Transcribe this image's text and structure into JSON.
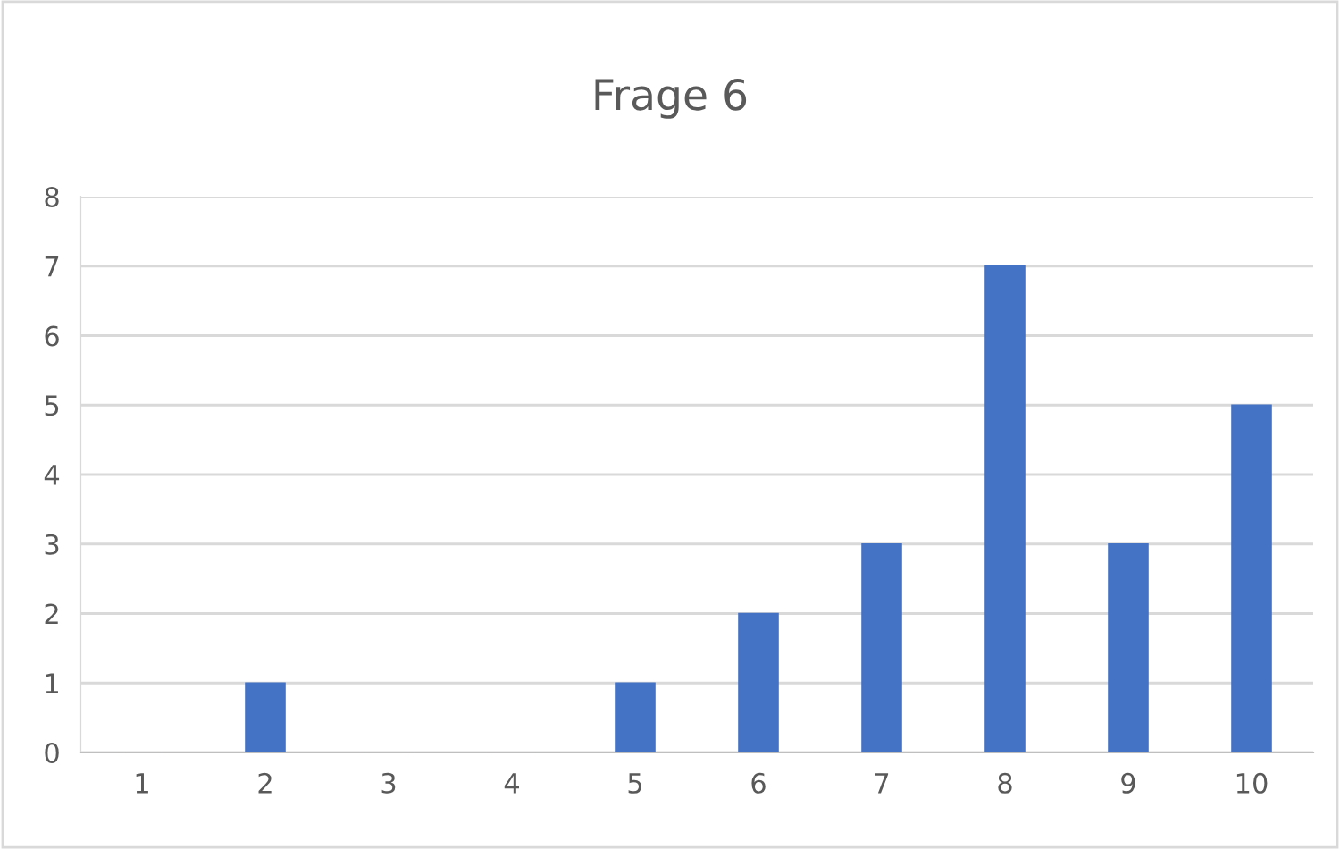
{
  "chart_data": {
    "type": "bar",
    "title": "Frage 6",
    "categories": [
      "1",
      "2",
      "3",
      "4",
      "5",
      "6",
      "7",
      "8",
      "9",
      "10"
    ],
    "values": [
      0,
      1,
      0,
      0,
      1,
      2,
      3,
      7,
      3,
      5
    ],
    "color": "#4472c4",
    "ylim": [
      0,
      8
    ],
    "yticks": [
      0,
      1,
      2,
      3,
      4,
      5,
      6,
      7,
      8
    ],
    "grid": "y"
  }
}
